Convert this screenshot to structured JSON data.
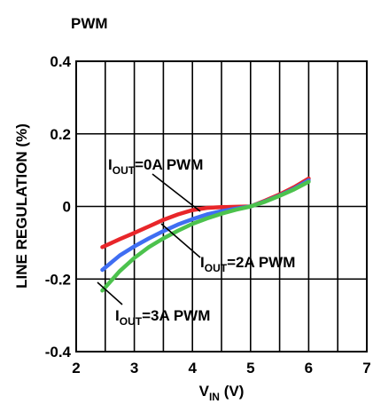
{
  "chart_data": {
    "type": "line",
    "title": "PWM",
    "xlabel": {
      "main": "V",
      "sub": "IN",
      "unit": " (V)"
    },
    "ylabel": "LINE REGULATION (%)",
    "xlim": [
      2,
      7
    ],
    "ylim": [
      -0.4,
      0.4
    ],
    "x_ticks": [
      2,
      3,
      4,
      5,
      6,
      7
    ],
    "x_tick_labels": [
      "2",
      "3",
      "4",
      "5",
      "6",
      "7"
    ],
    "y_ticks": [
      -0.4,
      -0.2,
      0,
      0.2,
      0.4
    ],
    "y_tick_labels": [
      "-0.4",
      "-0.2",
      "0",
      "0.2",
      "0.4"
    ],
    "grid": true,
    "series": [
      {
        "color": "#e8262a",
        "x": [
          2.45,
          2.75,
          3.0,
          3.25,
          3.5,
          3.75,
          4.0,
          4.25,
          4.5,
          4.75,
          5.0,
          5.25,
          5.5,
          5.75,
          6.0
        ],
        "y": [
          -0.112,
          -0.09,
          -0.073,
          -0.055,
          -0.037,
          -0.022,
          -0.01,
          -0.004,
          -0.002,
          -0.001,
          0.0,
          0.016,
          0.033,
          0.053,
          0.077
        ]
      },
      {
        "color": "#3f6ef2",
        "x": [
          2.45,
          2.75,
          3.0,
          3.25,
          3.5,
          3.75,
          4.0,
          4.25,
          4.5,
          4.75,
          5.0,
          5.25,
          5.5,
          5.75,
          6.0
        ],
        "y": [
          -0.175,
          -0.135,
          -0.11,
          -0.088,
          -0.068,
          -0.05,
          -0.035,
          -0.022,
          -0.013,
          -0.006,
          0.0,
          0.014,
          0.03,
          0.049,
          0.072
        ]
      },
      {
        "color": "#4cc24d",
        "x": [
          2.45,
          2.75,
          3.0,
          3.25,
          3.5,
          3.75,
          4.0,
          4.25,
          4.5,
          4.75,
          5.0,
          5.25,
          5.5,
          5.75,
          6.0
        ],
        "y": [
          -0.232,
          -0.178,
          -0.142,
          -0.112,
          -0.088,
          -0.067,
          -0.048,
          -0.033,
          -0.02,
          -0.009,
          0.0,
          0.013,
          0.029,
          0.047,
          0.068
        ]
      }
    ],
    "annotations": [
      {
        "main": "I",
        "sub": "OUT",
        "rest": "=0A PWM"
      },
      {
        "main": "I",
        "sub": "OUT",
        "rest": "=2A PWM"
      },
      {
        "main": "I",
        "sub": "OUT",
        "rest": "=3A PWM"
      }
    ]
  }
}
